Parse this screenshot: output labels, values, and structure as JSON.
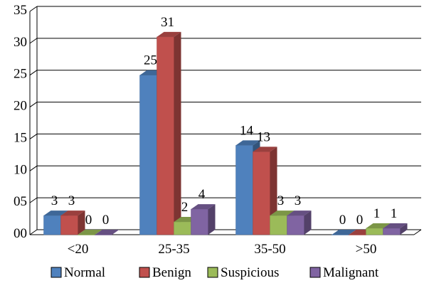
{
  "chart_data": {
    "type": "bar",
    "style": "3d-clustered-column",
    "categories": [
      "<20",
      "25-35",
      "35-50",
      ">50"
    ],
    "series": [
      {
        "name": "Normal",
        "color": "#4f81bd",
        "values": [
          3,
          25,
          14,
          0
        ]
      },
      {
        "name": "Benign",
        "color": "#c0504d",
        "values": [
          3,
          31,
          13,
          0
        ]
      },
      {
        "name": "Suspicious",
        "color": "#9bbb59",
        "values": [
          0,
          2,
          3,
          1
        ]
      },
      {
        "name": "Malignant",
        "color": "#8064a2",
        "values": [
          0,
          4,
          3,
          1
        ]
      }
    ],
    "ylim": [
      0,
      35
    ],
    "yticks": [
      0,
      5,
      10,
      15,
      20,
      25,
      30,
      35
    ],
    "ytick_labels": [
      "00",
      "05",
      "10",
      "15",
      "20",
      "25",
      "30",
      "35"
    ],
    "grid": true,
    "legend": "bottom",
    "title": "",
    "xlabel": "",
    "ylabel": ""
  }
}
